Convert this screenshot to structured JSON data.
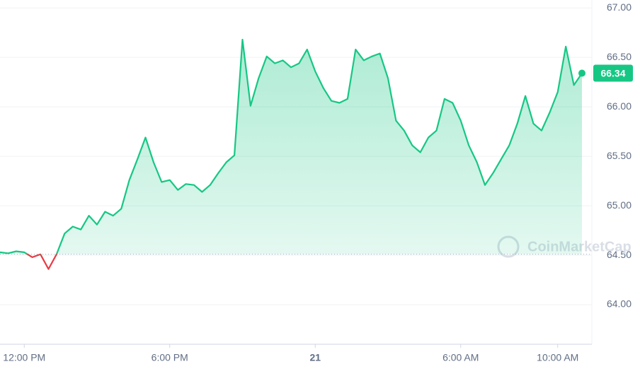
{
  "chart_data": {
    "type": "line",
    "watermark": "CoinMarketCap",
    "values": [
      64.53,
      64.52,
      64.54,
      64.53,
      64.48,
      64.51,
      64.36,
      64.51,
      64.72,
      64.79,
      64.76,
      64.9,
      64.81,
      64.94,
      64.9,
      64.97,
      65.26,
      65.47,
      65.69,
      65.44,
      65.24,
      65.26,
      65.16,
      65.22,
      65.21,
      65.14,
      65.21,
      65.33,
      65.44,
      65.51,
      66.68,
      66.01,
      66.29,
      66.51,
      66.44,
      66.47,
      66.4,
      66.44,
      66.58,
      66.36,
      66.19,
      66.06,
      66.04,
      66.08,
      66.58,
      66.47,
      66.51,
      66.54,
      66.29,
      65.86,
      65.76,
      65.61,
      65.54,
      65.69,
      65.76,
      66.08,
      66.04,
      65.86,
      65.61,
      65.44,
      65.21,
      65.33,
      65.47,
      65.61,
      65.83,
      66.11,
      65.83,
      65.76,
      65.94,
      66.15,
      66.61,
      66.22,
      66.34
    ],
    "baseline": 64.51,
    "up_color": "#16c784",
    "down_color": "#ea3943",
    "xlim": [
      0,
      72
    ],
    "xticks": [
      {
        "value": 3,
        "label": "12:00 PM"
      },
      {
        "value": 21,
        "label": "6:00 PM"
      },
      {
        "value": 39,
        "label": "21"
      },
      {
        "value": 57,
        "label": "6:00 AM"
      },
      {
        "value": 69,
        "label": "10:00 AM"
      }
    ],
    "ylim": [
      63.6,
      67.08
    ],
    "yticks": [
      {
        "value": 64,
        "label": "64.00"
      },
      {
        "value": 64.5,
        "label": "64.50"
      },
      {
        "value": 65,
        "label": "65.00"
      },
      {
        "value": 65.5,
        "label": "65.50"
      },
      {
        "value": 66,
        "label": "66.00"
      },
      {
        "value": 66.5,
        "label": "66.50"
      },
      {
        "value": 67,
        "label": "67.00"
      }
    ],
    "grid": true
  }
}
